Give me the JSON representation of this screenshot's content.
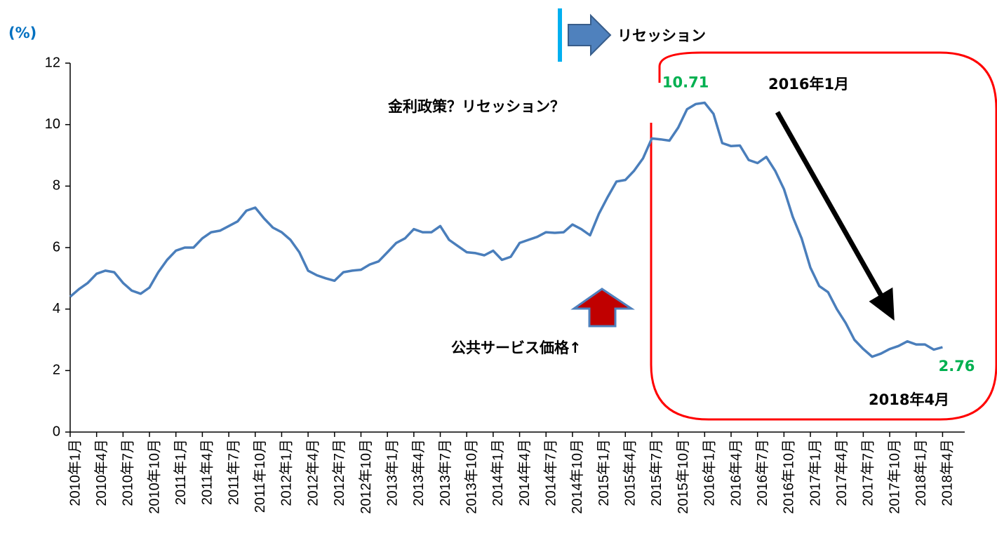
{
  "chart_data": {
    "type": "line",
    "y_axis_label": "(%)",
    "categories": [
      "2010年1月",
      null,
      null,
      "2010年4月",
      null,
      null,
      "2010年7月",
      null,
      null,
      "2010年10月",
      null,
      null,
      "2011年1月",
      null,
      null,
      "2011年4月",
      null,
      null,
      "2011年7月",
      null,
      null,
      "2011年10月",
      null,
      null,
      "2012年1月",
      null,
      null,
      "2012年4月",
      null,
      null,
      "2012年7月",
      null,
      null,
      "2012年10月",
      null,
      null,
      "2013年1月",
      null,
      null,
      "2013年4月",
      null,
      null,
      "2013年7月",
      null,
      null,
      "2013年10月",
      null,
      null,
      "2014年1月",
      null,
      null,
      "2014年4月",
      null,
      null,
      "2014年7月",
      null,
      null,
      "2014年10月",
      null,
      null,
      "2015年1月",
      null,
      null,
      "2015年4月",
      null,
      null,
      "2015年7月",
      null,
      null,
      "2015年10月",
      null,
      null,
      "2016年1月",
      null,
      null,
      "2016年4月",
      null,
      null,
      "2016年7月",
      null,
      null,
      "2016年10月",
      null,
      null,
      "2017年1月",
      null,
      null,
      "2017年4月",
      null,
      null,
      "2017年7月",
      null,
      null,
      "2017年10月",
      null,
      null,
      "2018年1月",
      null,
      null,
      "2018年4月"
    ],
    "series": [
      {
        "color": "#4a7ebb",
        "values": [
          4.4,
          4.65,
          4.85,
          5.15,
          5.25,
          5.2,
          4.85,
          4.6,
          4.5,
          4.7,
          5.2,
          5.6,
          5.9,
          6.0,
          6.0,
          6.3,
          6.5,
          6.55,
          6.7,
          6.85,
          7.2,
          7.3,
          6.95,
          6.65,
          6.5,
          6.25,
          5.85,
          5.25,
          5.1,
          5.0,
          4.92,
          5.2,
          5.25,
          5.28,
          5.45,
          5.55,
          5.85,
          6.15,
          6.3,
          6.6,
          6.5,
          6.5,
          6.7,
          6.25,
          6.05,
          5.85,
          5.82,
          5.75,
          5.9,
          5.6,
          5.7,
          6.15,
          6.25,
          6.35,
          6.5,
          6.48,
          6.5,
          6.75,
          6.6,
          6.4,
          7.1,
          7.65,
          8.15,
          8.2,
          8.5,
          8.9,
          9.55,
          9.52,
          9.48,
          9.9,
          10.5,
          10.67,
          10.71,
          10.35,
          9.4,
          9.3,
          9.32,
          8.85,
          8.75,
          8.95,
          8.5,
          7.9,
          7.0,
          6.3,
          5.35,
          4.75,
          4.55,
          4.0,
          3.55,
          3.0,
          2.7,
          2.45,
          2.55,
          2.7,
          2.8,
          2.95,
          2.85,
          2.85,
          2.68,
          2.76
        ]
      }
    ],
    "ylim": [
      0,
      12
    ],
    "yticks": [
      0,
      2,
      4,
      6,
      8,
      10,
      12
    ],
    "grid": false,
    "label_color": "#00b050",
    "annotations": [
      "リセッション",
      "金利政策？リセッション？",
      "公共サービス価格↑",
      "2016年1月",
      "2018年4月"
    ]
  }
}
